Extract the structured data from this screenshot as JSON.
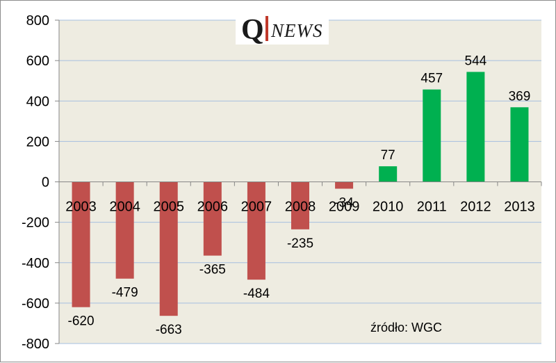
{
  "logo": {
    "letter": "Q",
    "word": "NEWS"
  },
  "source": "źródło: WGC",
  "colors": {
    "negative": "#c0504d",
    "positive": "#00b050",
    "plot_background": "#eeece1",
    "gridline": "#a6bfe0"
  },
  "chart_data": {
    "type": "bar",
    "title": "",
    "xlabel": "",
    "ylabel": "",
    "categories": [
      "2003",
      "2004",
      "2005",
      "2006",
      "2007",
      "2008",
      "2009",
      "2010",
      "2011",
      "2012",
      "2013"
    ],
    "values": [
      -620,
      -479,
      -663,
      -365,
      -484,
      -235,
      -34,
      77,
      457,
      544,
      369
    ],
    "ylim": [
      -800,
      800
    ],
    "yticks": [
      800,
      600,
      400,
      200,
      0,
      -200,
      -400,
      -600,
      -800
    ],
    "grid": true,
    "legend": "none"
  }
}
